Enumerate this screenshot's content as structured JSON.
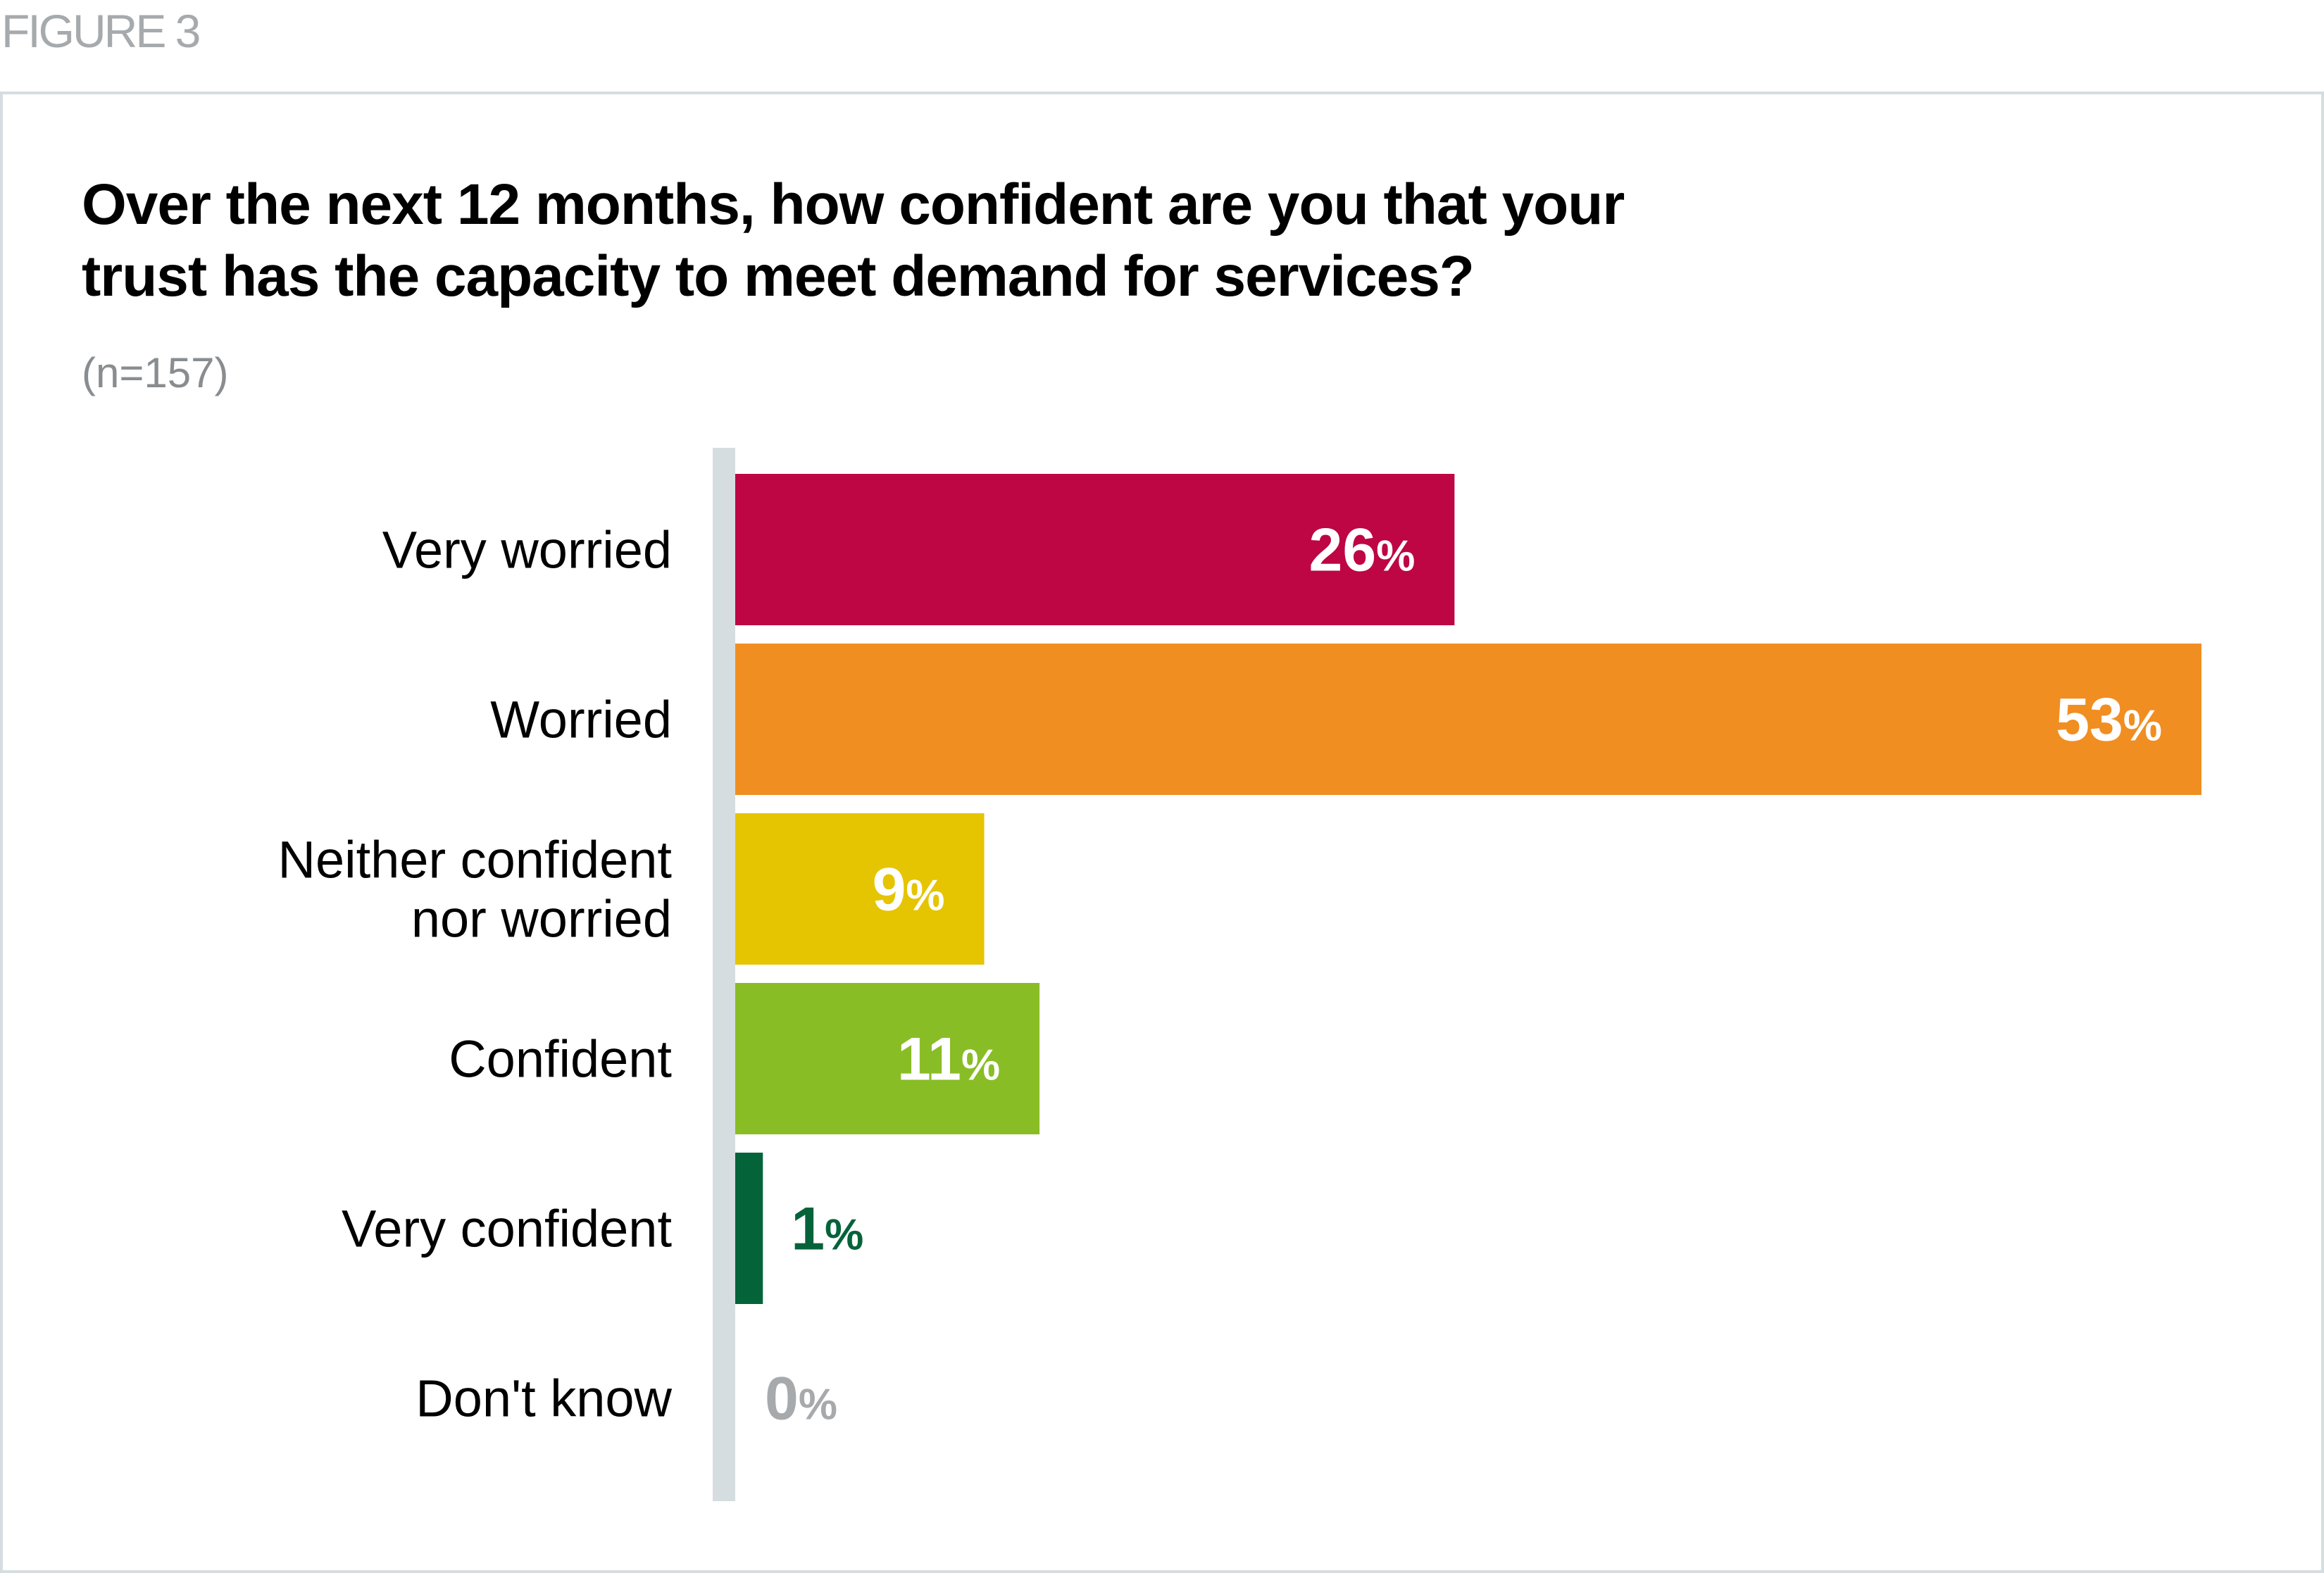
{
  "figure_label": "FIGURE 3",
  "title_lines": [
    "Over the next 12 months, how confident are you that your",
    "trust has the capacity to meet demand for services?"
  ],
  "sample_size": "(n=157)",
  "chart_data": {
    "type": "bar",
    "orientation": "horizontal",
    "title": "Over the next 12 months, how confident are you that your trust has the capacity to meet demand for services?",
    "subtitle": "(n=157)",
    "xlabel": "",
    "ylabel": "",
    "unit": "%",
    "xlim": [
      0,
      53
    ],
    "grid": false,
    "legend": "none",
    "categories": [
      [
        "Very worried"
      ],
      [
        "Worried"
      ],
      [
        "Neither confident",
        "nor worried"
      ],
      [
        "Confident"
      ],
      [
        "Very confident"
      ],
      [
        "Don't know"
      ]
    ],
    "category_names": [
      "Very worried",
      "Worried",
      "Neither confident nor worried",
      "Confident",
      "Very confident",
      "Don't know"
    ],
    "values": [
      26,
      53,
      9,
      11,
      1,
      0
    ],
    "value_labels": [
      "26",
      "53",
      "9",
      "11",
      "1",
      "0"
    ],
    "percent_sign": "%",
    "colors": [
      "#bd0643",
      "#f18e21",
      "#e5c401",
      "#89bd26",
      "#05633a",
      "#a7aaac"
    ],
    "label_colors": [
      "#ffffff",
      "#ffffff",
      "#ffffff",
      "#ffffff",
      "#05633a",
      "#a7aaac"
    ],
    "label_inside": [
      true,
      true,
      true,
      true,
      false,
      false
    ]
  }
}
